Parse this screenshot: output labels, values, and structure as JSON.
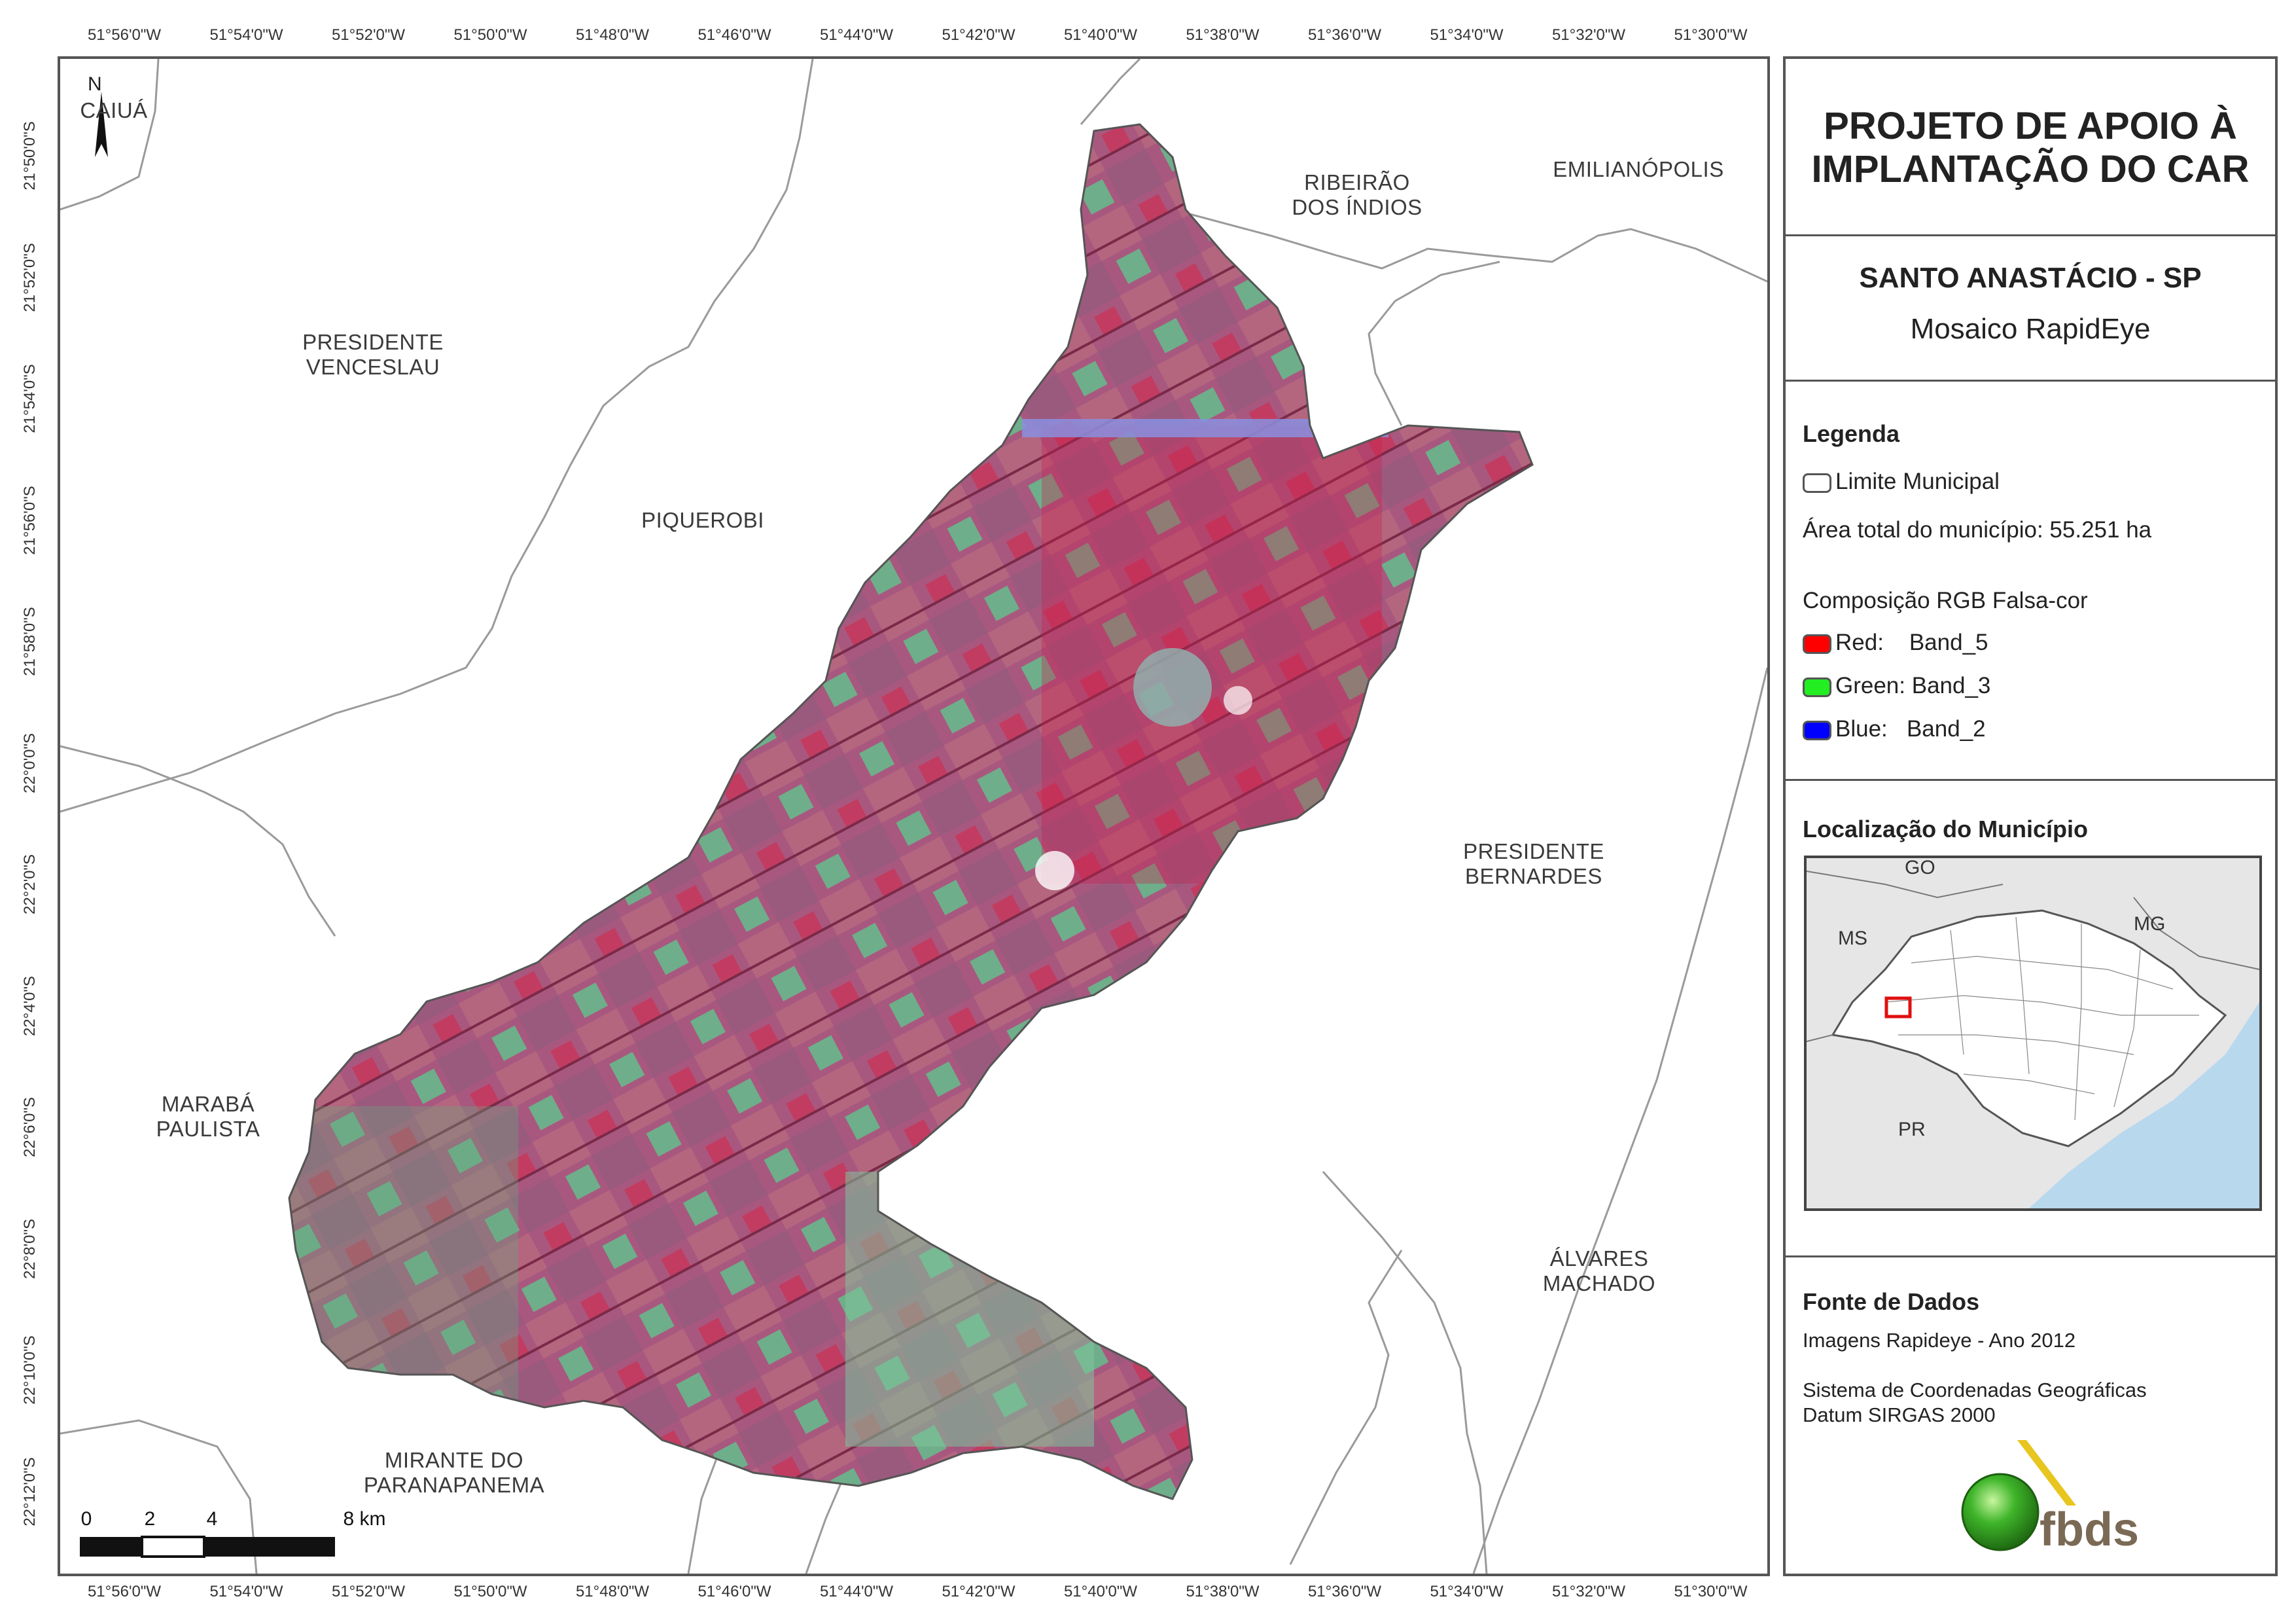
{
  "graticule": {
    "lon_labels": [
      "51°56'0\"W",
      "51°54'0\"W",
      "51°52'0\"W",
      "51°50'0\"W",
      "51°48'0\"W",
      "51°46'0\"W",
      "51°44'0\"W",
      "51°42'0\"W",
      "51°40'0\"W",
      "51°38'0\"W",
      "51°36'0\"W",
      "51°34'0\"W",
      "51°32'0\"W",
      "51°30'0\"W"
    ],
    "lat_labels": [
      "21°50'0\"S",
      "21°52'0\"S",
      "21°54'0\"S",
      "21°56'0\"S",
      "21°58'0\"S",
      "22°0'0\"S",
      "22°2'0\"S",
      "22°4'0\"S",
      "22°6'0\"S",
      "22°8'0\"S",
      "22°10'0\"S",
      "22°12'0\"S"
    ]
  },
  "map": {
    "north_label": "N",
    "places": [
      {
        "name": "CAIUÁ"
      },
      {
        "name": "PRESIDENTE VENCESLAU",
        "line1": "PRESIDENTE",
        "line2": "VENCESLAU"
      },
      {
        "name": "PIQUEROBI"
      },
      {
        "name": "RIBEIRÃO DOS ÍNDIOS",
        "line1": "RIBEIRÃO",
        "line2": "DOS ÍNDIOS"
      },
      {
        "name": "EMILIANÓPOLIS"
      },
      {
        "name": "PRESIDENTE BERNARDES",
        "line1": "PRESIDENTE",
        "line2": "BERNARDES"
      },
      {
        "name": "MARABÁ PAULISTA",
        "line1": "MARABÁ",
        "line2": "PAULISTA"
      },
      {
        "name": "ÁLVARES MACHADO",
        "line1": "ÁLVARES",
        "line2": "MACHADO"
      },
      {
        "name": "MIRANTE DO PARANAPANEMA",
        "line1": "MIRANTE DO",
        "line2": "PARANAPANEMA"
      }
    ],
    "scale": {
      "labels": [
        "0",
        "2",
        "4",
        "8 km"
      ]
    }
  },
  "sidebar": {
    "title_line1": "PROJETO DE APOIO À",
    "title_line2": "IMPLANTAÇÃO DO CAR",
    "municipality": "SANTO ANASTÁCIO - SP",
    "mosaic": "Mosaico RapidEye",
    "legend": {
      "heading": "Legenda",
      "boundary": "Limite Municipal",
      "area": "Área total do município: 55.251 ha",
      "composition": "Composição RGB Falsa-cor",
      "bands": [
        {
          "label": "Red:    Band_5",
          "color": "#ff0000"
        },
        {
          "label": "Green: Band_3",
          "color": "#22ee22"
        },
        {
          "label": "Blue:   Band_2",
          "color": "#0000ff"
        }
      ]
    },
    "location": {
      "heading": "Localização do Município",
      "states": [
        "GO",
        "MS",
        "MG",
        "PR"
      ]
    },
    "source": {
      "heading": "Fonte de Dados",
      "line1": "Imagens Rapideye - Ano 2012",
      "line2": "Sistema de Coordenadas Geográficas",
      "line3": "Datum SIRGAS 2000"
    },
    "logo_text": "fbds"
  },
  "colors": {
    "image_magenta": "#b04a78",
    "image_red": "#c8204e",
    "image_green": "#7fc49a",
    "sea": "#b8d8ee",
    "logo_green": "#3fb52a",
    "logo_yellow": "#e8c51f"
  }
}
